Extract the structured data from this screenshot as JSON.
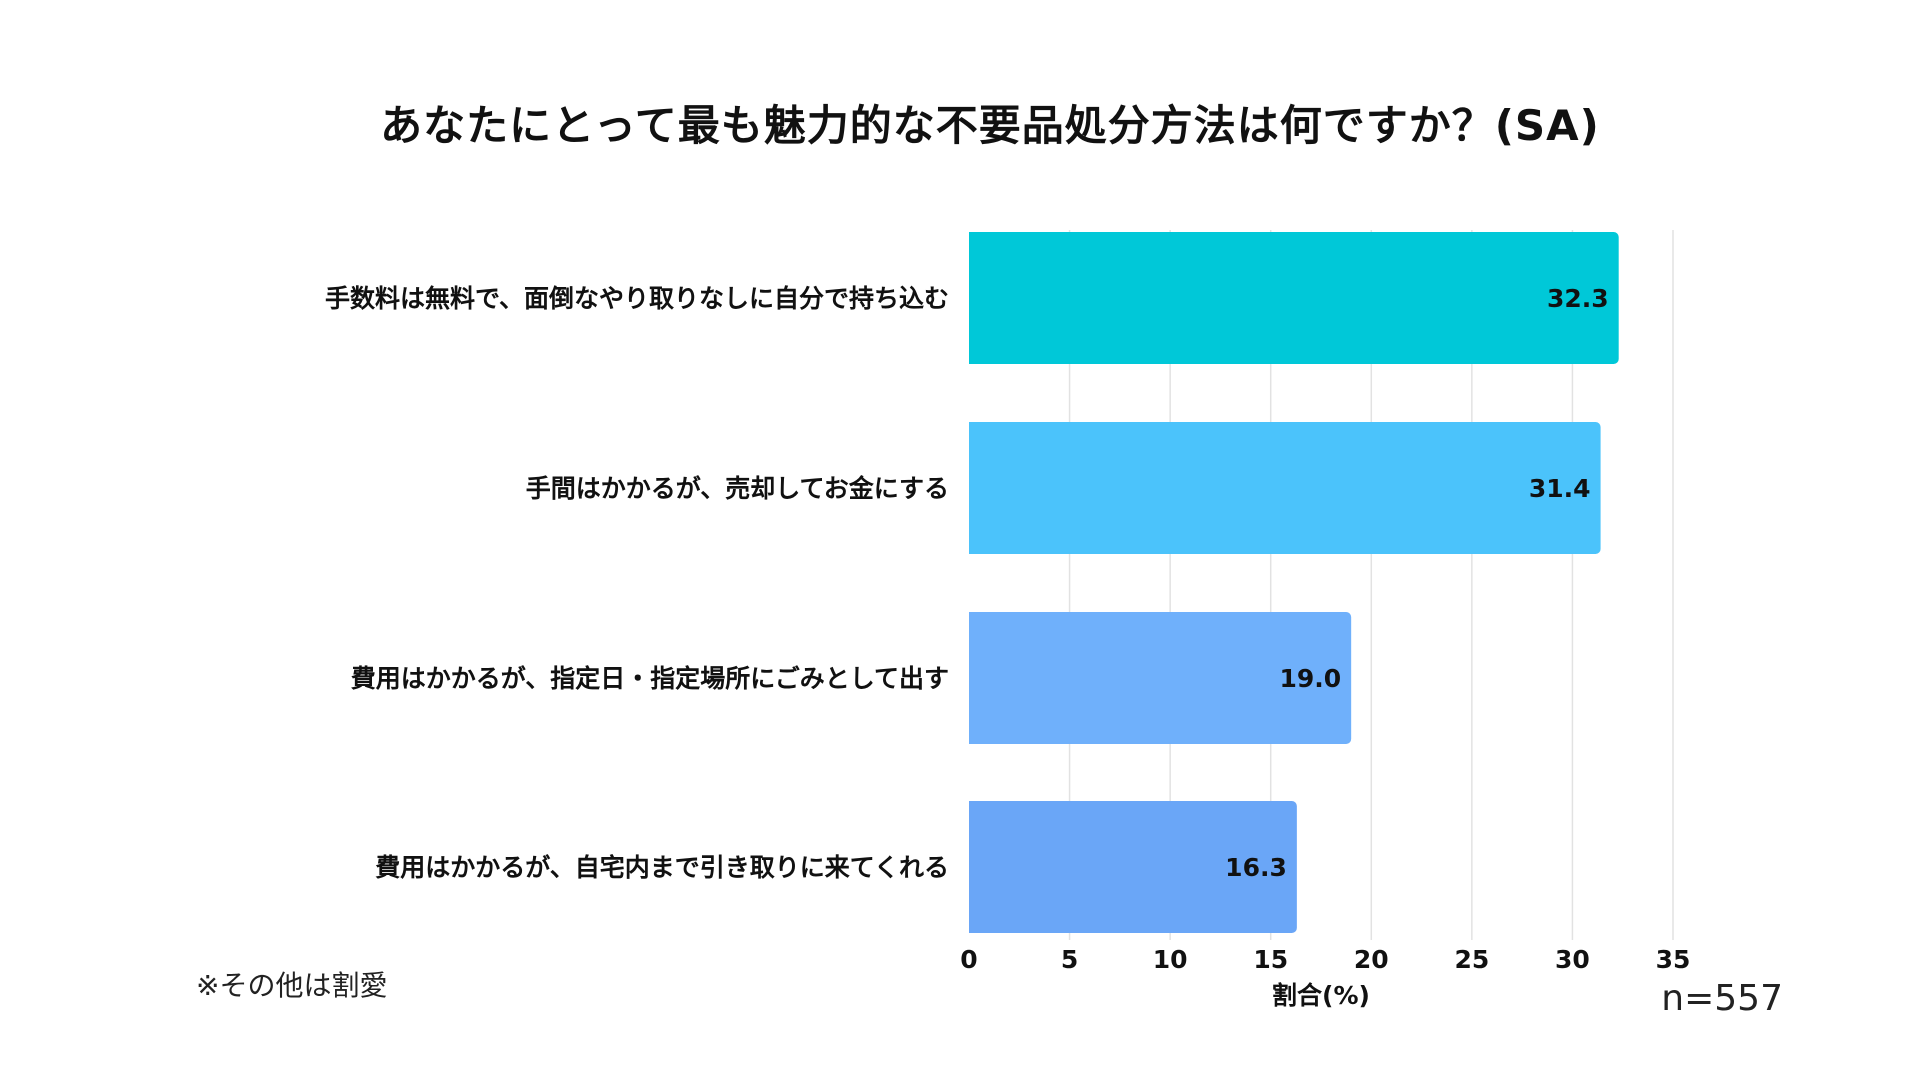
{
  "colors": {
    "background": "#ffffff",
    "grid": "#e2e2e2",
    "text": "#111111",
    "bar_1": "#00c8d8",
    "bar_2": "#4bc3fb",
    "bar_3": "#6fb0fb",
    "bar_4": "#6aa6f7"
  },
  "chart_data": {
    "type": "bar",
    "orientation": "horizontal",
    "title": "あなたにとって最も魅力的な不要品処分方法は何ですか？(SA)",
    "categories": [
      "手数料は無料で、面倒なやり取りなしに自分で持ち込む",
      "手間はかかるが、売却してお金にする",
      "費用はかかるが、指定日・指定場所にごみとして出す",
      "費用はかかるが、自宅内まで引き取りに来てくれる"
    ],
    "values": [
      32.3,
      31.4,
      19.0,
      16.3
    ],
    "value_labels": [
      "32.3",
      "31.4",
      "19.0",
      "16.3"
    ],
    "xlabel": "割合(%)",
    "xlim": [
      0,
      35
    ],
    "xticks": [
      0,
      5,
      10,
      15,
      20,
      25,
      30,
      35
    ],
    "xtick_labels": [
      "0",
      "5",
      "10",
      "15",
      "20",
      "25",
      "30",
      "35"
    ],
    "grid": "vertical"
  },
  "footnote": "※その他は割愛",
  "sample_size": "n=557"
}
